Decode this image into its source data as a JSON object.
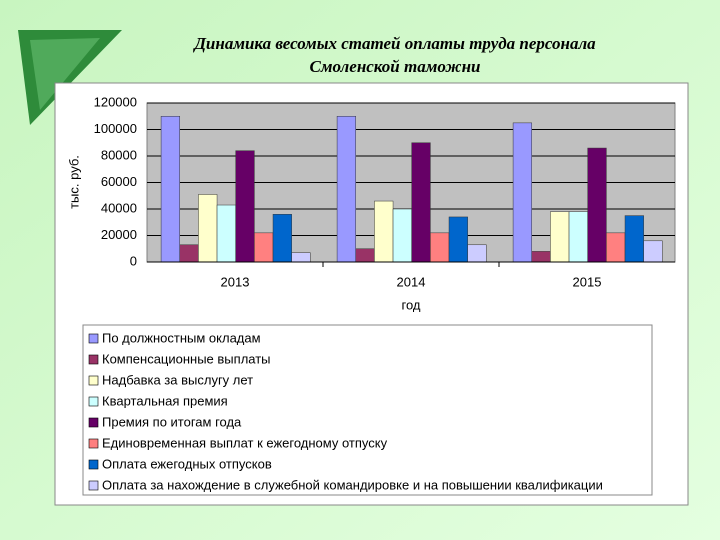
{
  "chart_data": {
    "type": "bar",
    "title": [
      "Динамика весомых статей оплаты труда персонала",
      "Смоленской таможни"
    ],
    "y_label": "тыс. руб.",
    "x_label": "год",
    "categories": [
      "2013",
      "2014",
      "2015"
    ],
    "ylim": [
      0,
      120000
    ],
    "yticks": [
      0,
      20000,
      40000,
      60000,
      80000,
      100000,
      120000
    ],
    "grid": true,
    "series": [
      {
        "name": "По должностным окладам",
        "color": "#9999ff",
        "values": [
          110000,
          110000,
          105000
        ]
      },
      {
        "name": "Компенсационные выплаты",
        "color": "#993366",
        "values": [
          13000,
          10000,
          8000
        ]
      },
      {
        "name": "Надбавка за выслугу лет",
        "color": "#ffffcc",
        "values": [
          51000,
          46000,
          38000
        ]
      },
      {
        "name": "Квартальная премия",
        "color": "#ccffff",
        "values": [
          43000,
          40000,
          38000
        ]
      },
      {
        "name": "Премия по итогам года",
        "color": "#660066",
        "values": [
          84000,
          90000,
          86000
        ]
      },
      {
        "name": "Единовременная выплат к ежегодному отпуску",
        "color": "#ff8080",
        "values": [
          22000,
          22000,
          22000
        ]
      },
      {
        "name": "Оплата ежегодных отпусков",
        "color": "#0066cc",
        "values": [
          36000,
          34000,
          35000
        ]
      },
      {
        "name": "Оплата за нахождение в служебной командировке и на повышении квалификации",
        "color": "#ccccff",
        "values": [
          7000,
          13000,
          16000
        ]
      }
    ]
  }
}
